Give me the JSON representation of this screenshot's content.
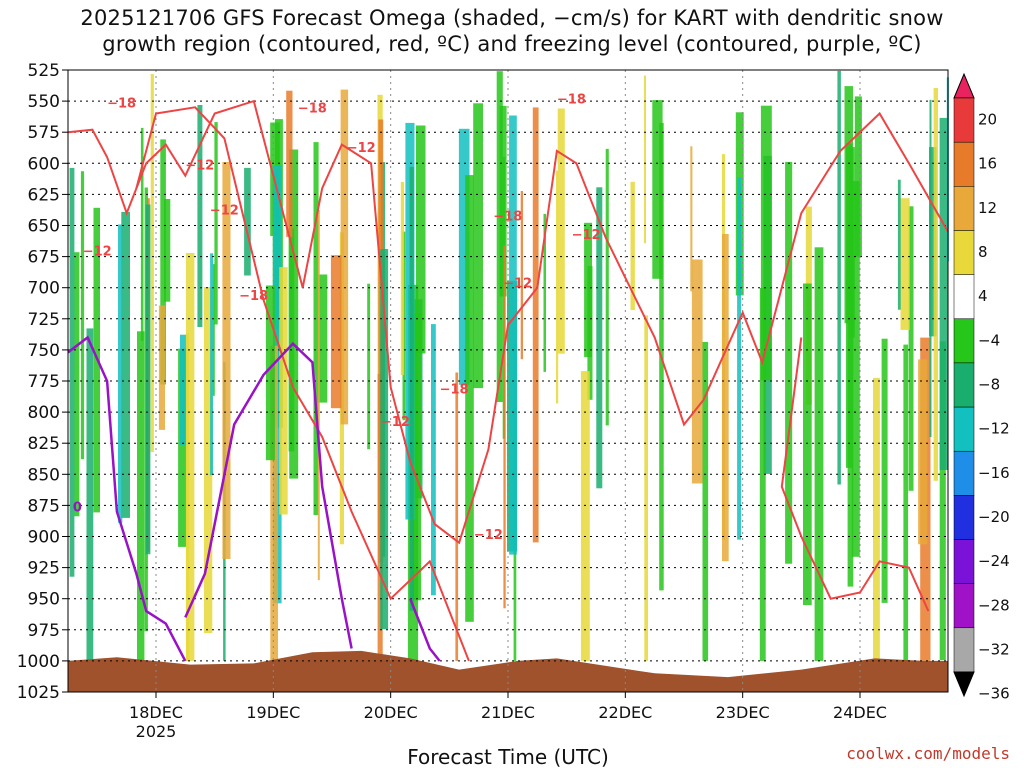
{
  "title_line1": "2025121706 GFS Forecast Omega (shaded, −cm/s) for KART with dendritic snow",
  "title_line2": "growth region (contoured, red, ºC) and freezing level (contoured, purple, ºC)",
  "credit": "coolwx.com/models",
  "chart_data": {
    "type": "heatmap",
    "xlabel": "Forecast Time (UTC)",
    "x_ticks": [
      {
        "label": "18DEC",
        "sublabel": "2025",
        "hours": 18
      },
      {
        "label": "19DEC",
        "hours": 42
      },
      {
        "label": "20DEC",
        "hours": 66
      },
      {
        "label": "21DEC",
        "hours": 90
      },
      {
        "label": "22DEC",
        "hours": 114
      },
      {
        "label": "23DEC",
        "hours": 138
      },
      {
        "label": "24DEC",
        "hours": 162
      }
    ],
    "xlim_hours": [
      0,
      180
    ],
    "y_ticks": [
      "525",
      "550",
      "575",
      "600",
      "625",
      "650",
      "675",
      "700",
      "725",
      "750",
      "775",
      "800",
      "825",
      "850",
      "875",
      "900",
      "925",
      "950",
      "975",
      "1000",
      "1025"
    ],
    "ylim_hpa": [
      1025,
      525
    ],
    "grid": true,
    "colorbar": {
      "labels": [
        "20",
        "16",
        "12",
        "8",
        "4",
        "−4",
        "−8",
        "−12",
        "−16",
        "−20",
        "−24",
        "−28",
        "−32",
        "−36"
      ],
      "colors": [
        "#e8235f",
        "#e83a3a",
        "#e87b2a",
        "#e8a93a",
        "#e8d83a",
        "#ffffff",
        "#26c61a",
        "#1aae6e",
        "#12c0c0",
        "#1e8ee8",
        "#2030e0",
        "#7a12d8",
        "#a012c8",
        "#a8a8a8",
        "#000000"
      ]
    },
    "series": [
      {
        "name": "dendritic snow growth region (red, ºC)",
        "color": "#ee4444",
        "contour_labels": [
          {
            "text": "−18",
            "hours": 8,
            "hpa": 555
          },
          {
            "text": "−12",
            "hours": 24,
            "hpa": 605
          },
          {
            "text": "−12",
            "hours": 3,
            "hpa": 674
          },
          {
            "text": "−12",
            "hours": 29,
            "hpa": 641
          },
          {
            "text": "−18",
            "hours": 35,
            "hpa": 710
          },
          {
            "text": "−18",
            "hours": 47,
            "hpa": 559
          },
          {
            "text": "−12",
            "hours": 57,
            "hpa": 591
          },
          {
            "text": "−12",
            "hours": 64,
            "hpa": 811
          },
          {
            "text": "−18",
            "hours": 76,
            "hpa": 785
          },
          {
            "text": "−18",
            "hours": 87,
            "hpa": 646
          },
          {
            "text": "−12",
            "hours": 89,
            "hpa": 700
          },
          {
            "text": "−12",
            "hours": 83,
            "hpa": 902
          },
          {
            "text": "−18",
            "hours": 100,
            "hpa": 552
          },
          {
            "text": "−12",
            "hours": 103,
            "hpa": 661
          }
        ]
      },
      {
        "name": "freezing level (purple, ºC)",
        "color": "#9a12c8",
        "contour_labels": [
          {
            "text": "0",
            "hours": 1,
            "hpa": 880
          }
        ]
      }
    ],
    "terrain_color": "#a0522d"
  }
}
